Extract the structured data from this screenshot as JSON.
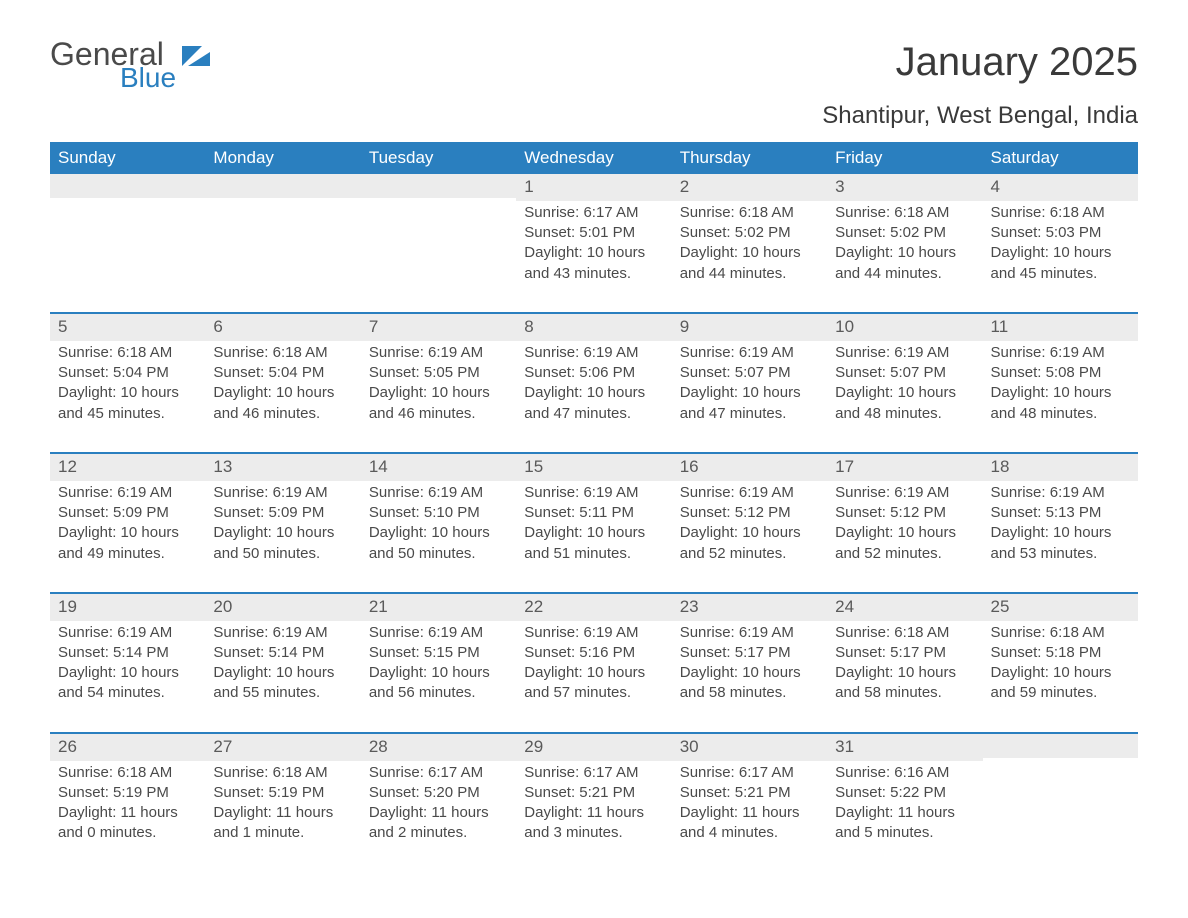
{
  "brand": {
    "general": "General",
    "blue": "Blue",
    "accent_color": "#2a7fbf"
  },
  "title": "January 2025",
  "location": "Shantipur, West Bengal, India",
  "dow": [
    "Sunday",
    "Monday",
    "Tuesday",
    "Wednesday",
    "Thursday",
    "Friday",
    "Saturday"
  ],
  "colors": {
    "header_bg": "#2a7fbf",
    "header_fg": "#ffffff",
    "daynum_bg": "#ececec",
    "text": "#4a4a4a",
    "border": "#2a7fbf",
    "page_bg": "#ffffff"
  },
  "fonts": {
    "title_pt": 40,
    "location_pt": 24,
    "dow_pt": 17,
    "body_pt": 15
  },
  "weeks": [
    [
      {
        "n": "",
        "sunrise": "",
        "sunset": "",
        "daylight": ""
      },
      {
        "n": "",
        "sunrise": "",
        "sunset": "",
        "daylight": ""
      },
      {
        "n": "",
        "sunrise": "",
        "sunset": "",
        "daylight": ""
      },
      {
        "n": "1",
        "sunrise": "Sunrise: 6:17 AM",
        "sunset": "Sunset: 5:01 PM",
        "daylight": "Daylight: 10 hours and 43 minutes."
      },
      {
        "n": "2",
        "sunrise": "Sunrise: 6:18 AM",
        "sunset": "Sunset: 5:02 PM",
        "daylight": "Daylight: 10 hours and 44 minutes."
      },
      {
        "n": "3",
        "sunrise": "Sunrise: 6:18 AM",
        "sunset": "Sunset: 5:02 PM",
        "daylight": "Daylight: 10 hours and 44 minutes."
      },
      {
        "n": "4",
        "sunrise": "Sunrise: 6:18 AM",
        "sunset": "Sunset: 5:03 PM",
        "daylight": "Daylight: 10 hours and 45 minutes."
      }
    ],
    [
      {
        "n": "5",
        "sunrise": "Sunrise: 6:18 AM",
        "sunset": "Sunset: 5:04 PM",
        "daylight": "Daylight: 10 hours and 45 minutes."
      },
      {
        "n": "6",
        "sunrise": "Sunrise: 6:18 AM",
        "sunset": "Sunset: 5:04 PM",
        "daylight": "Daylight: 10 hours and 46 minutes."
      },
      {
        "n": "7",
        "sunrise": "Sunrise: 6:19 AM",
        "sunset": "Sunset: 5:05 PM",
        "daylight": "Daylight: 10 hours and 46 minutes."
      },
      {
        "n": "8",
        "sunrise": "Sunrise: 6:19 AM",
        "sunset": "Sunset: 5:06 PM",
        "daylight": "Daylight: 10 hours and 47 minutes."
      },
      {
        "n": "9",
        "sunrise": "Sunrise: 6:19 AM",
        "sunset": "Sunset: 5:07 PM",
        "daylight": "Daylight: 10 hours and 47 minutes."
      },
      {
        "n": "10",
        "sunrise": "Sunrise: 6:19 AM",
        "sunset": "Sunset: 5:07 PM",
        "daylight": "Daylight: 10 hours and 48 minutes."
      },
      {
        "n": "11",
        "sunrise": "Sunrise: 6:19 AM",
        "sunset": "Sunset: 5:08 PM",
        "daylight": "Daylight: 10 hours and 48 minutes."
      }
    ],
    [
      {
        "n": "12",
        "sunrise": "Sunrise: 6:19 AM",
        "sunset": "Sunset: 5:09 PM",
        "daylight": "Daylight: 10 hours and 49 minutes."
      },
      {
        "n": "13",
        "sunrise": "Sunrise: 6:19 AM",
        "sunset": "Sunset: 5:09 PM",
        "daylight": "Daylight: 10 hours and 50 minutes."
      },
      {
        "n": "14",
        "sunrise": "Sunrise: 6:19 AM",
        "sunset": "Sunset: 5:10 PM",
        "daylight": "Daylight: 10 hours and 50 minutes."
      },
      {
        "n": "15",
        "sunrise": "Sunrise: 6:19 AM",
        "sunset": "Sunset: 5:11 PM",
        "daylight": "Daylight: 10 hours and 51 minutes."
      },
      {
        "n": "16",
        "sunrise": "Sunrise: 6:19 AM",
        "sunset": "Sunset: 5:12 PM",
        "daylight": "Daylight: 10 hours and 52 minutes."
      },
      {
        "n": "17",
        "sunrise": "Sunrise: 6:19 AM",
        "sunset": "Sunset: 5:12 PM",
        "daylight": "Daylight: 10 hours and 52 minutes."
      },
      {
        "n": "18",
        "sunrise": "Sunrise: 6:19 AM",
        "sunset": "Sunset: 5:13 PM",
        "daylight": "Daylight: 10 hours and 53 minutes."
      }
    ],
    [
      {
        "n": "19",
        "sunrise": "Sunrise: 6:19 AM",
        "sunset": "Sunset: 5:14 PM",
        "daylight": "Daylight: 10 hours and 54 minutes."
      },
      {
        "n": "20",
        "sunrise": "Sunrise: 6:19 AM",
        "sunset": "Sunset: 5:14 PM",
        "daylight": "Daylight: 10 hours and 55 minutes."
      },
      {
        "n": "21",
        "sunrise": "Sunrise: 6:19 AM",
        "sunset": "Sunset: 5:15 PM",
        "daylight": "Daylight: 10 hours and 56 minutes."
      },
      {
        "n": "22",
        "sunrise": "Sunrise: 6:19 AM",
        "sunset": "Sunset: 5:16 PM",
        "daylight": "Daylight: 10 hours and 57 minutes."
      },
      {
        "n": "23",
        "sunrise": "Sunrise: 6:19 AM",
        "sunset": "Sunset: 5:17 PM",
        "daylight": "Daylight: 10 hours and 58 minutes."
      },
      {
        "n": "24",
        "sunrise": "Sunrise: 6:18 AM",
        "sunset": "Sunset: 5:17 PM",
        "daylight": "Daylight: 10 hours and 58 minutes."
      },
      {
        "n": "25",
        "sunrise": "Sunrise: 6:18 AM",
        "sunset": "Sunset: 5:18 PM",
        "daylight": "Daylight: 10 hours and 59 minutes."
      }
    ],
    [
      {
        "n": "26",
        "sunrise": "Sunrise: 6:18 AM",
        "sunset": "Sunset: 5:19 PM",
        "daylight": "Daylight: 11 hours and 0 minutes."
      },
      {
        "n": "27",
        "sunrise": "Sunrise: 6:18 AM",
        "sunset": "Sunset: 5:19 PM",
        "daylight": "Daylight: 11 hours and 1 minute."
      },
      {
        "n": "28",
        "sunrise": "Sunrise: 6:17 AM",
        "sunset": "Sunset: 5:20 PM",
        "daylight": "Daylight: 11 hours and 2 minutes."
      },
      {
        "n": "29",
        "sunrise": "Sunrise: 6:17 AM",
        "sunset": "Sunset: 5:21 PM",
        "daylight": "Daylight: 11 hours and 3 minutes."
      },
      {
        "n": "30",
        "sunrise": "Sunrise: 6:17 AM",
        "sunset": "Sunset: 5:21 PM",
        "daylight": "Daylight: 11 hours and 4 minutes."
      },
      {
        "n": "31",
        "sunrise": "Sunrise: 6:16 AM",
        "sunset": "Sunset: 5:22 PM",
        "daylight": "Daylight: 11 hours and 5 minutes."
      },
      {
        "n": "",
        "sunrise": "",
        "sunset": "",
        "daylight": ""
      }
    ]
  ]
}
